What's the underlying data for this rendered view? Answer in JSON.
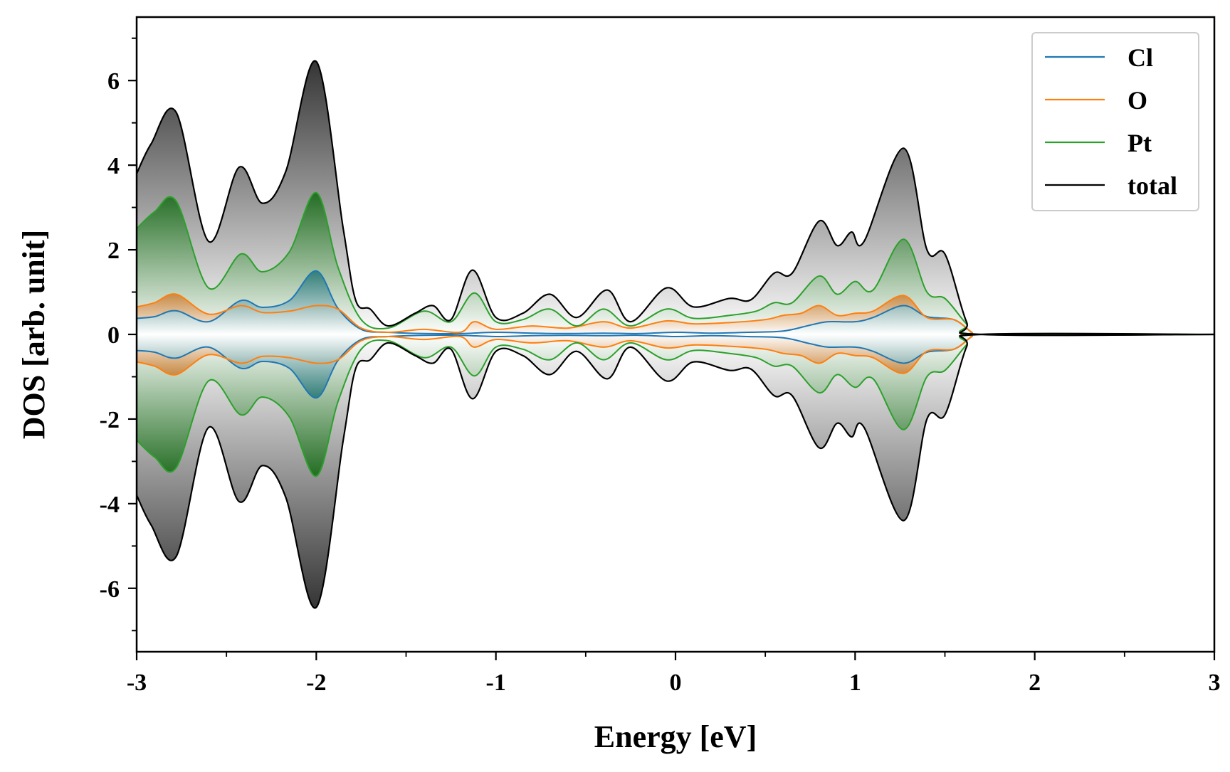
{
  "chart_data": {
    "type": "area",
    "title": "",
    "xlabel": "Energy [eV]",
    "ylabel": "DOS [arb. unit]",
    "xlim": [
      -3,
      3
    ],
    "ylim": [
      -7.5,
      7.5
    ],
    "x_ticks": [
      -3,
      -2,
      -1,
      0,
      1,
      2,
      3
    ],
    "x_tick_labels": [
      "-3",
      "-2",
      "-1",
      "0",
      "1",
      "2",
      "3"
    ],
    "y_ticks": [
      -6,
      -4,
      -2,
      0,
      2,
      4,
      6
    ],
    "y_tick_labels": [
      "-6",
      "-4",
      "-2",
      "0",
      "2",
      "4",
      "6"
    ],
    "legend_position": "top-right",
    "symmetric": true,
    "series": [
      {
        "name": "Cl",
        "color": "#1f77b4",
        "fill": "#1a6f6f",
        "points": [
          [
            -3.0,
            0.38
          ],
          [
            -2.9,
            0.42
          ],
          [
            -2.78,
            0.56
          ],
          [
            -2.6,
            0.3
          ],
          [
            -2.42,
            0.8
          ],
          [
            -2.3,
            0.64
          ],
          [
            -2.15,
            0.8
          ],
          [
            -2.0,
            1.5
          ],
          [
            -1.88,
            0.62
          ],
          [
            -1.75,
            0.12
          ],
          [
            -1.6,
            0.05
          ],
          [
            -1.4,
            0.02
          ],
          [
            -1.2,
            0.02
          ],
          [
            -1.0,
            0.05
          ],
          [
            -0.8,
            0.03
          ],
          [
            -0.6,
            0.02
          ],
          [
            -0.4,
            0.03
          ],
          [
            -0.2,
            0.02
          ],
          [
            0.0,
            0.05
          ],
          [
            0.2,
            0.03
          ],
          [
            0.4,
            0.05
          ],
          [
            0.6,
            0.08
          ],
          [
            0.75,
            0.22
          ],
          [
            0.85,
            0.3
          ],
          [
            1.0,
            0.3
          ],
          [
            1.1,
            0.4
          ],
          [
            1.27,
            0.68
          ],
          [
            1.4,
            0.42
          ],
          [
            1.55,
            0.35
          ],
          [
            1.65,
            0.05
          ],
          [
            1.7,
            0.0
          ],
          [
            3.0,
            0.0
          ]
        ]
      },
      {
        "name": "O",
        "color": "#ff7f0e",
        "fill": "#c87a2a",
        "points": [
          [
            -3.0,
            0.65
          ],
          [
            -2.9,
            0.75
          ],
          [
            -2.78,
            0.95
          ],
          [
            -2.6,
            0.48
          ],
          [
            -2.42,
            0.68
          ],
          [
            -2.3,
            0.52
          ],
          [
            -2.15,
            0.55
          ],
          [
            -2.0,
            0.68
          ],
          [
            -1.88,
            0.6
          ],
          [
            -1.75,
            0.15
          ],
          [
            -1.6,
            0.05
          ],
          [
            -1.4,
            0.12
          ],
          [
            -1.2,
            0.05
          ],
          [
            -1.12,
            0.3
          ],
          [
            -1.0,
            0.12
          ],
          [
            -0.8,
            0.2
          ],
          [
            -0.6,
            0.15
          ],
          [
            -0.4,
            0.3
          ],
          [
            -0.25,
            0.15
          ],
          [
            -0.05,
            0.32
          ],
          [
            0.1,
            0.25
          ],
          [
            0.3,
            0.28
          ],
          [
            0.5,
            0.35
          ],
          [
            0.6,
            0.45
          ],
          [
            0.7,
            0.5
          ],
          [
            0.8,
            0.68
          ],
          [
            0.9,
            0.45
          ],
          [
            1.0,
            0.5
          ],
          [
            1.1,
            0.55
          ],
          [
            1.27,
            0.92
          ],
          [
            1.4,
            0.4
          ],
          [
            1.55,
            0.35
          ],
          [
            1.65,
            0.05
          ],
          [
            1.7,
            0.0
          ],
          [
            3.0,
            0.0
          ]
        ]
      },
      {
        "name": "Pt",
        "color": "#2ca02c",
        "fill": "#1e6b1e",
        "points": [
          [
            -3.0,
            2.5
          ],
          [
            -2.9,
            2.9
          ],
          [
            -2.78,
            3.15
          ],
          [
            -2.6,
            1.1
          ],
          [
            -2.42,
            1.9
          ],
          [
            -2.3,
            1.48
          ],
          [
            -2.15,
            1.95
          ],
          [
            -2.0,
            3.35
          ],
          [
            -1.88,
            1.6
          ],
          [
            -1.75,
            0.35
          ],
          [
            -1.6,
            0.15
          ],
          [
            -1.4,
            0.55
          ],
          [
            -1.25,
            0.3
          ],
          [
            -1.12,
            0.98
          ],
          [
            -1.0,
            0.3
          ],
          [
            -0.85,
            0.35
          ],
          [
            -0.7,
            0.6
          ],
          [
            -0.55,
            0.2
          ],
          [
            -0.4,
            0.6
          ],
          [
            -0.25,
            0.2
          ],
          [
            -0.05,
            0.6
          ],
          [
            0.1,
            0.38
          ],
          [
            0.3,
            0.45
          ],
          [
            0.45,
            0.55
          ],
          [
            0.55,
            0.75
          ],
          [
            0.65,
            0.75
          ],
          [
            0.8,
            1.38
          ],
          [
            0.9,
            0.95
          ],
          [
            1.0,
            1.25
          ],
          [
            1.1,
            1.05
          ],
          [
            1.27,
            2.25
          ],
          [
            1.4,
            1.0
          ],
          [
            1.5,
            0.85
          ],
          [
            1.62,
            0.25
          ],
          [
            1.7,
            0.0
          ],
          [
            3.0,
            0.0
          ]
        ]
      },
      {
        "name": "total",
        "color": "#000000",
        "fill": "#2b2b2b",
        "points": [
          [
            -3.0,
            3.8
          ],
          [
            -2.92,
            4.5
          ],
          [
            -2.78,
            5.25
          ],
          [
            -2.6,
            2.2
          ],
          [
            -2.43,
            3.95
          ],
          [
            -2.3,
            3.1
          ],
          [
            -2.17,
            3.85
          ],
          [
            -2.0,
            6.45
          ],
          [
            -1.85,
            2.5
          ],
          [
            -1.78,
            0.8
          ],
          [
            -1.7,
            0.6
          ],
          [
            -1.6,
            0.2
          ],
          [
            -1.45,
            0.5
          ],
          [
            -1.35,
            0.68
          ],
          [
            -1.25,
            0.35
          ],
          [
            -1.13,
            1.52
          ],
          [
            -1.0,
            0.4
          ],
          [
            -0.85,
            0.5
          ],
          [
            -0.7,
            0.95
          ],
          [
            -0.55,
            0.4
          ],
          [
            -0.38,
            1.05
          ],
          [
            -0.25,
            0.3
          ],
          [
            -0.05,
            1.1
          ],
          [
            0.1,
            0.65
          ],
          [
            0.3,
            0.85
          ],
          [
            0.42,
            0.82
          ],
          [
            0.55,
            1.45
          ],
          [
            0.65,
            1.45
          ],
          [
            0.8,
            2.68
          ],
          [
            0.9,
            2.1
          ],
          [
            0.98,
            2.42
          ],
          [
            1.05,
            2.2
          ],
          [
            1.27,
            4.4
          ],
          [
            1.4,
            2.0
          ],
          [
            1.5,
            1.9
          ],
          [
            1.62,
            0.3
          ],
          [
            1.7,
            0.0
          ],
          [
            3.0,
            0.0
          ]
        ]
      }
    ]
  }
}
